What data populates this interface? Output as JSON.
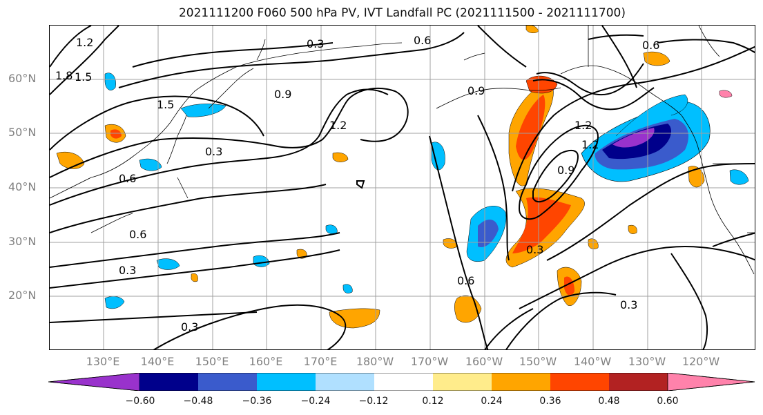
{
  "title": "2021111200 F060 500 hPa PV, IVT Landfall PC (2021111500 - 2021111700)",
  "lat_labels": [
    "60°N",
    "50°N",
    "40°N",
    "30°N",
    "20°N"
  ],
  "lon_labels": [
    "130°E",
    "140°E",
    "150°E",
    "160°E",
    "170°E",
    "180°W",
    "170°W",
    "160°W",
    "150°W",
    "140°W",
    "130°W",
    "120°W"
  ],
  "contour_labels": [
    "0.3",
    "0.6",
    "0.9",
    "1.2",
    "1.5",
    "1.8",
    "0.3",
    "0.6",
    "0.6",
    "0.9",
    "0.3",
    "0.3",
    "1.2",
    "0.6",
    "0.9",
    "0.3",
    "0.3",
    "0.6",
    "1.2",
    "1.5",
    "1.2"
  ],
  "colorbar": {
    "ticks": [
      "−0.60",
      "−0.48",
      "−0.36",
      "−0.24",
      "−0.12",
      "0.12",
      "0.24",
      "0.36",
      "0.48",
      "0.60"
    ],
    "colors": [
      "#9932cc",
      "#00008b",
      "#3a5bcc",
      "#00bfff",
      "#b0e0ff",
      "#ffffff",
      "#ffec8b",
      "#ffa500",
      "#ff4500",
      "#b22222",
      "#ff82ab"
    ]
  }
}
